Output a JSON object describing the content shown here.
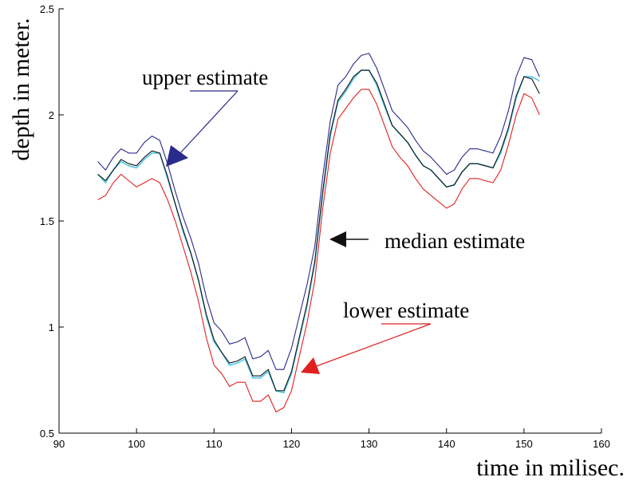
{
  "chart_data": {
    "type": "line",
    "title": "",
    "xlabel": "time in milisec.",
    "ylabel": "depth in meter.",
    "xlim": [
      90,
      160
    ],
    "ylim": [
      0.5,
      2.5
    ],
    "x_ticks": [
      90,
      100,
      110,
      120,
      130,
      140,
      150,
      160
    ],
    "y_ticks": [
      0.5,
      1,
      1.5,
      2,
      2.5
    ],
    "x_tick_labels": [
      "90",
      "100",
      "110",
      "120",
      "130",
      "140",
      "150",
      "160"
    ],
    "y_tick_labels": [
      "0.5",
      "1",
      "1.5",
      "2",
      "2.5"
    ],
    "grid": false,
    "x": [
      95,
      96,
      97,
      98,
      99,
      100,
      101,
      102,
      103,
      104,
      105,
      106,
      107,
      108,
      109,
      110,
      111,
      112,
      113,
      114,
      115,
      116,
      117,
      118,
      119,
      120,
      121,
      122,
      123,
      124,
      125,
      126,
      127,
      128,
      129,
      130,
      131,
      132,
      133,
      134,
      135,
      136,
      137,
      138,
      139,
      140,
      141,
      142,
      143,
      144,
      145,
      146,
      147,
      148,
      149,
      150,
      151,
      152
    ],
    "series": [
      {
        "color": "#2a2a8c",
        "values": [
          1.78,
          1.74,
          1.8,
          1.84,
          1.82,
          1.82,
          1.87,
          1.9,
          1.88,
          1.77,
          1.64,
          1.52,
          1.42,
          1.3,
          1.14,
          1.02,
          0.98,
          0.92,
          0.93,
          0.95,
          0.85,
          0.86,
          0.89,
          0.8,
          0.8,
          0.9,
          1.05,
          1.2,
          1.38,
          1.7,
          1.97,
          2.14,
          2.18,
          2.24,
          2.28,
          2.29,
          2.22,
          2.12,
          2.02,
          1.98,
          1.94,
          1.88,
          1.83,
          1.8,
          1.76,
          1.72,
          1.74,
          1.8,
          1.84,
          1.84,
          1.83,
          1.82,
          1.9,
          2.02,
          2.18,
          2.27,
          2.26,
          2.18
        ]
      },
      {
        "color": "#4ec8e8",
        "values": [
          1.72,
          1.68,
          1.74,
          1.78,
          1.76,
          1.75,
          1.79,
          1.82,
          1.82,
          1.7,
          1.58,
          1.45,
          1.35,
          1.22,
          1.05,
          0.93,
          0.88,
          0.82,
          0.83,
          0.85,
          0.76,
          0.76,
          0.79,
          0.7,
          0.69,
          0.78,
          0.94,
          1.1,
          1.3,
          1.62,
          1.9,
          2.06,
          2.11,
          2.17,
          2.21,
          2.21,
          2.14,
          2.04,
          1.95,
          1.91,
          1.87,
          1.81,
          1.76,
          1.74,
          1.7,
          1.66,
          1.67,
          1.73,
          1.77,
          1.77,
          1.76,
          1.75,
          1.82,
          1.93,
          2.08,
          2.18,
          2.18,
          2.16
        ]
      },
      {
        "color": "#111111",
        "values": [
          1.72,
          1.69,
          1.74,
          1.79,
          1.77,
          1.76,
          1.8,
          1.83,
          1.82,
          1.71,
          1.58,
          1.46,
          1.35,
          1.22,
          1.06,
          0.94,
          0.88,
          0.83,
          0.84,
          0.86,
          0.77,
          0.77,
          0.8,
          0.7,
          0.7,
          0.79,
          0.95,
          1.11,
          1.31,
          1.63,
          1.91,
          2.07,
          2.12,
          2.18,
          2.21,
          2.21,
          2.15,
          2.05,
          1.95,
          1.91,
          1.87,
          1.81,
          1.76,
          1.74,
          1.7,
          1.66,
          1.67,
          1.73,
          1.77,
          1.77,
          1.76,
          1.75,
          1.83,
          1.94,
          2.09,
          2.18,
          2.17,
          2.1
        ]
      },
      {
        "color": "#e02020",
        "values": [
          1.6,
          1.62,
          1.68,
          1.72,
          1.69,
          1.66,
          1.68,
          1.7,
          1.68,
          1.6,
          1.5,
          1.38,
          1.26,
          1.12,
          0.95,
          0.82,
          0.78,
          0.72,
          0.74,
          0.74,
          0.65,
          0.65,
          0.68,
          0.6,
          0.62,
          0.7,
          0.86,
          1.02,
          1.22,
          1.55,
          1.82,
          1.98,
          2.03,
          2.08,
          2.12,
          2.12,
          2.05,
          1.95,
          1.85,
          1.8,
          1.76,
          1.7,
          1.65,
          1.62,
          1.59,
          1.56,
          1.58,
          1.65,
          1.7,
          1.7,
          1.69,
          1.68,
          1.74,
          1.86,
          2.0,
          2.1,
          2.08,
          2.0
        ]
      }
    ],
    "annotations": [
      {
        "text": "upper estimate",
        "arrow_color": "#2a2a8c"
      },
      {
        "text": "median estimate",
        "arrow_color": "#111111"
      },
      {
        "text": "lower estimate",
        "arrow_color": "#e02020"
      }
    ]
  }
}
